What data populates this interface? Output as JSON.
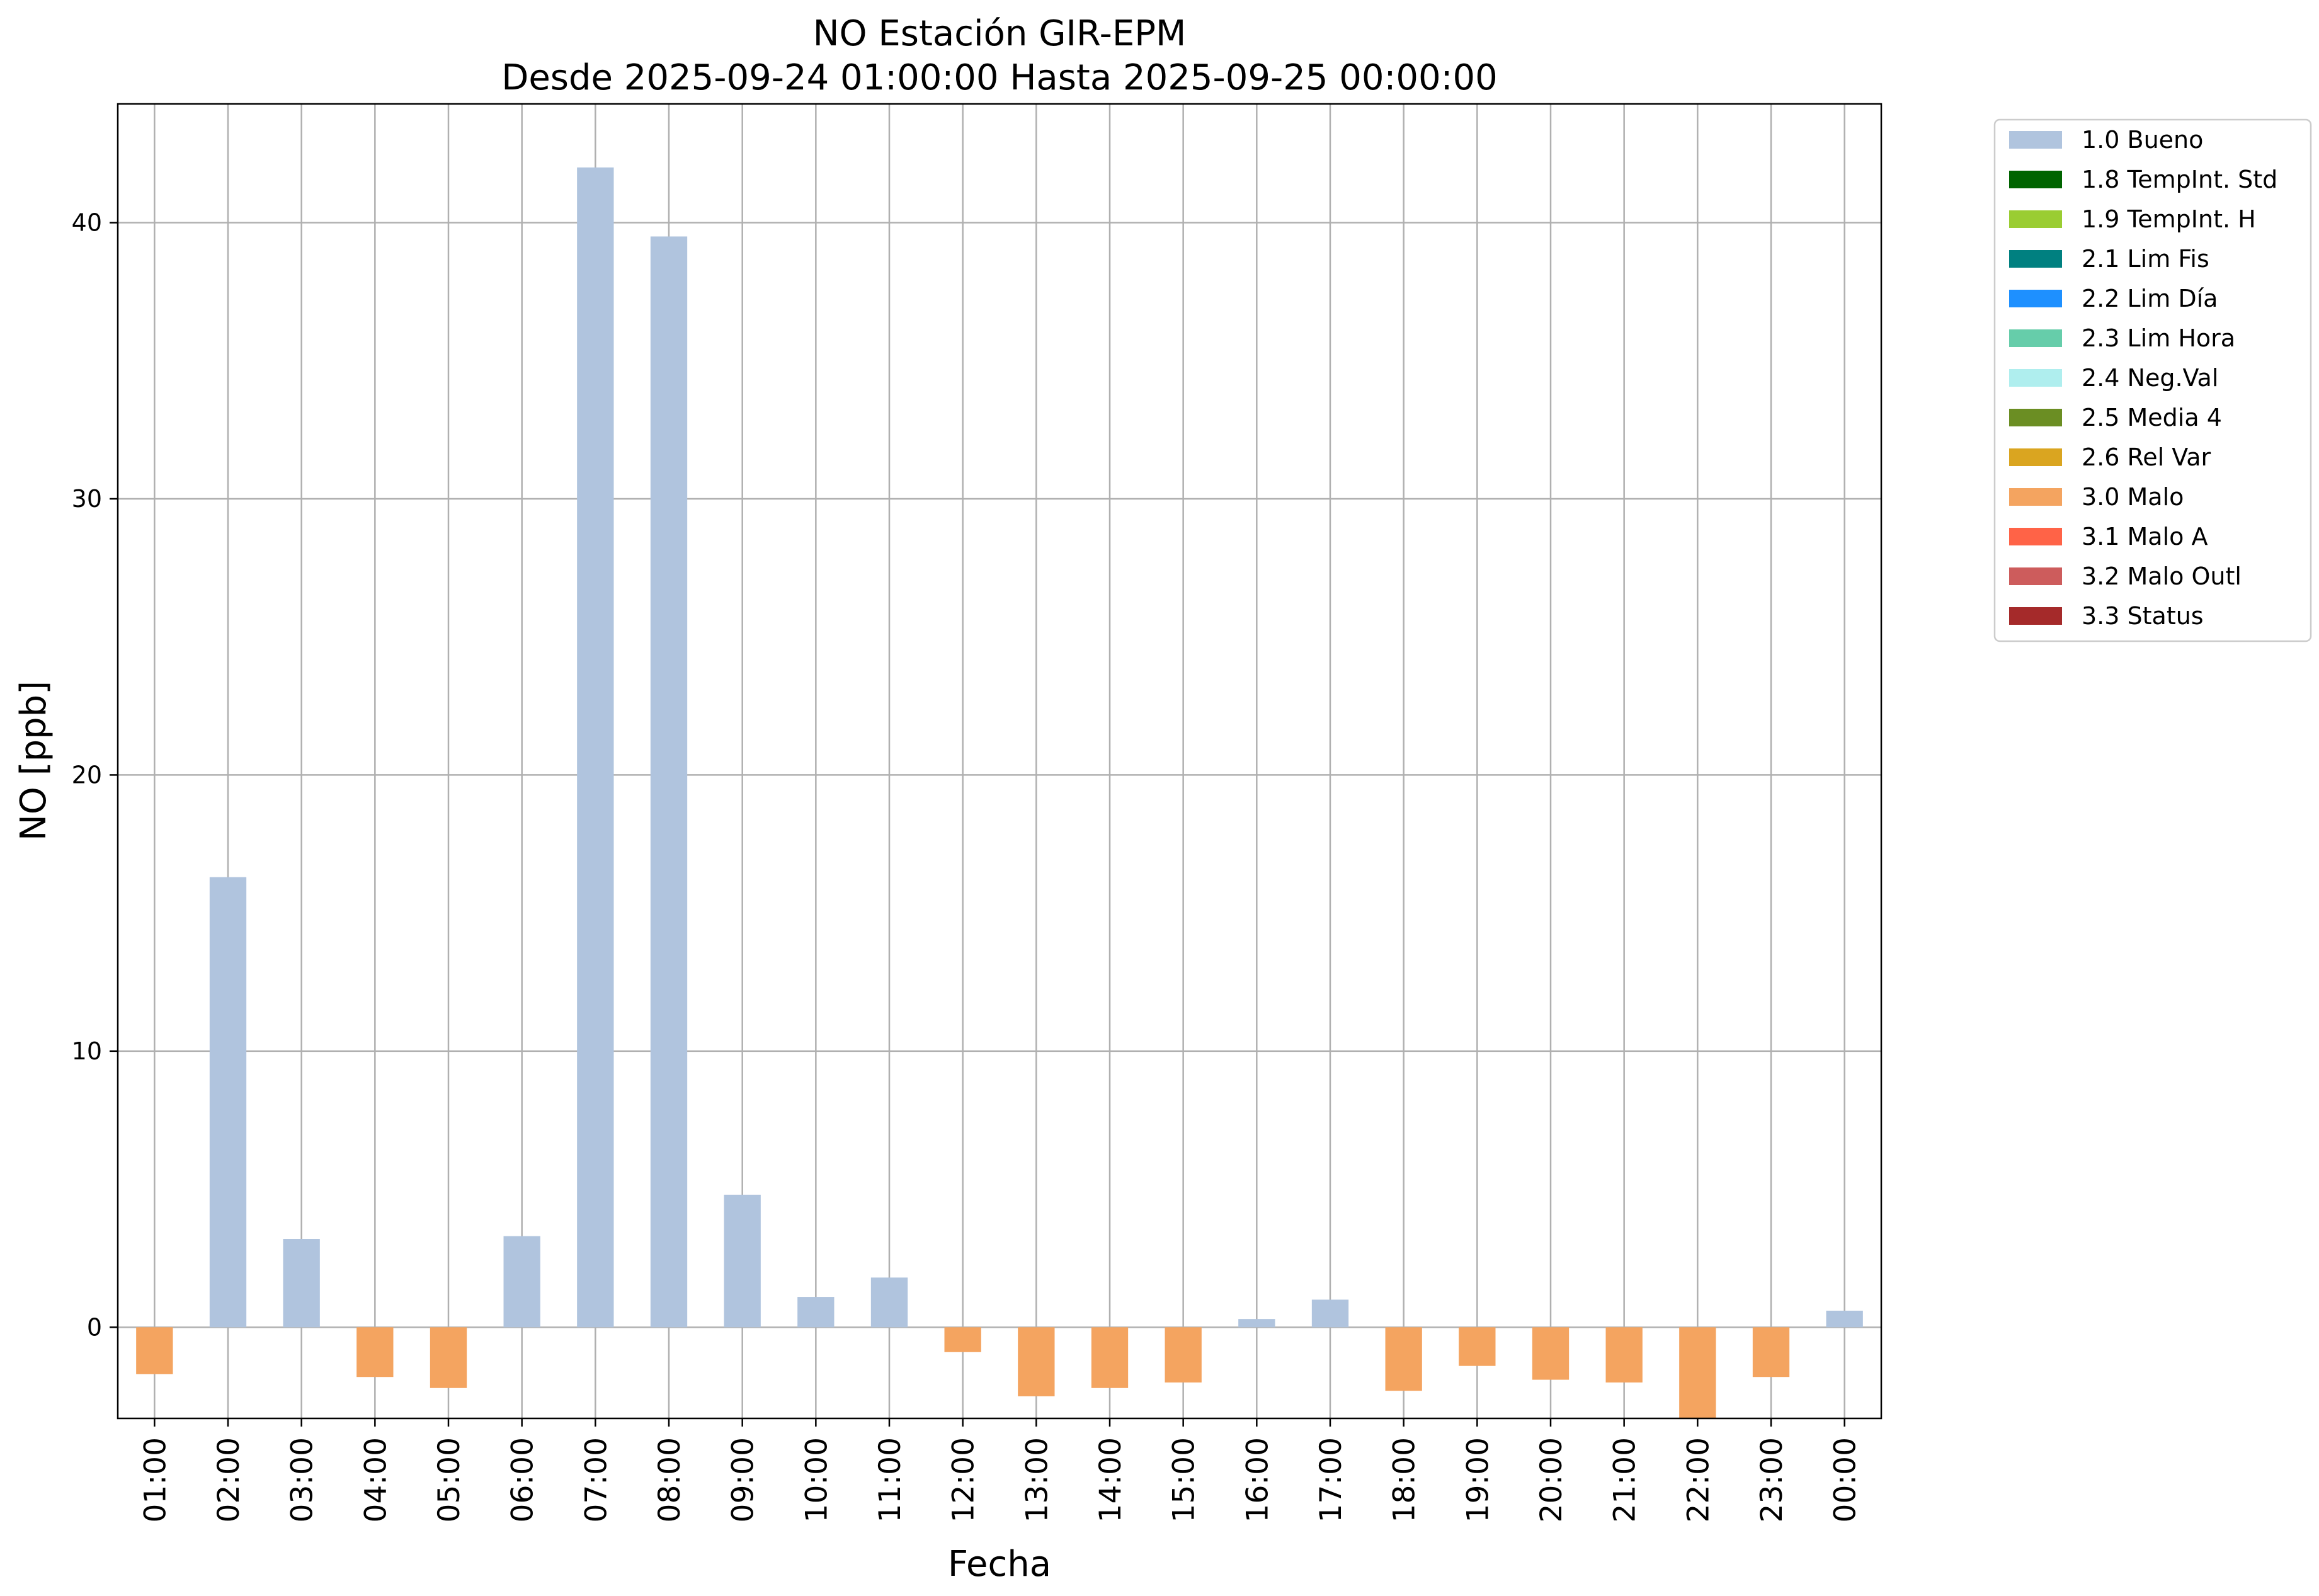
{
  "chart_data": {
    "type": "bar",
    "title": "NO Estación GIR-EPM",
    "subtitle": "Desde 2025-09-24 01:00:00 Hasta 2025-09-25 00:00:00",
    "xlabel": "Fecha",
    "ylabel": "NO [ppb]",
    "ylim": [
      -3.3,
      44.3
    ],
    "yticks": [
      0,
      10,
      20,
      30,
      40
    ],
    "grid": true,
    "legend_position": "outside-top-right",
    "categories": [
      "01:00",
      "02:00",
      "03:00",
      "04:00",
      "05:00",
      "06:00",
      "07:00",
      "08:00",
      "09:00",
      "10:00",
      "11:00",
      "12:00",
      "13:00",
      "14:00",
      "15:00",
      "16:00",
      "17:00",
      "18:00",
      "19:00",
      "20:00",
      "21:00",
      "22:00",
      "23:00",
      "00:00"
    ],
    "values": [
      -1.7,
      16.3,
      3.2,
      -1.8,
      -2.2,
      3.3,
      42.0,
      39.5,
      4.8,
      1.1,
      1.8,
      -0.9,
      -2.5,
      -2.2,
      -2.0,
      0.3,
      1.0,
      -2.3,
      -1.4,
      -1.9,
      -2.0,
      -3.3,
      -1.8,
      0.6
    ],
    "flags": [
      "3.0 Malo",
      "1.0 Bueno",
      "1.0 Bueno",
      "3.0 Malo",
      "3.0 Malo",
      "1.0 Bueno",
      "1.0 Bueno",
      "1.0 Bueno",
      "1.0 Bueno",
      "1.0 Bueno",
      "1.0 Bueno",
      "3.0 Malo",
      "3.0 Malo",
      "3.0 Malo",
      "3.0 Malo",
      "1.0 Bueno",
      "1.0 Bueno",
      "3.0 Malo",
      "3.0 Malo",
      "3.0 Malo",
      "3.0 Malo",
      "3.0 Malo",
      "3.0 Malo",
      "1.0 Bueno"
    ],
    "legend": [
      {
        "name": "1.0 Bueno",
        "color": "#b0c4de"
      },
      {
        "name": "1.8 TempInt. Std",
        "color": "#006400"
      },
      {
        "name": "1.9 TempInt. H",
        "color": "#9acd32"
      },
      {
        "name": "2.1 Lim Fis",
        "color": "#008080"
      },
      {
        "name": "2.2 Lim Día",
        "color": "#1e90ff"
      },
      {
        "name": "2.3 Lim Hora",
        "color": "#66cdaa"
      },
      {
        "name": "2.4 Neg.Val",
        "color": "#afeeee"
      },
      {
        "name": "2.5 Media 4",
        "color": "#6b8e23"
      },
      {
        "name": "2.6 Rel Var",
        "color": "#daa520"
      },
      {
        "name": "3.0 Malo",
        "color": "#f4a460"
      },
      {
        "name": "3.1 Malo A",
        "color": "#ff6347"
      },
      {
        "name": "3.2 Malo Outl",
        "color": "#cd5c5c"
      },
      {
        "name": "3.3 Status",
        "color": "#a52a2a"
      }
    ]
  }
}
